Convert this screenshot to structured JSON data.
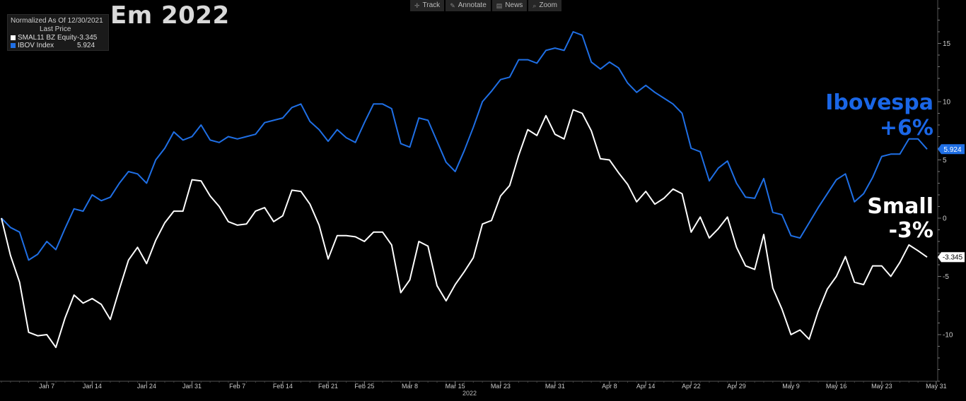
{
  "title": "Em 2022",
  "legend": {
    "header": "Normalized As Of 12/30/2021",
    "subheader": "Last Price",
    "items": [
      {
        "name": "SMAL11 BZ Equity",
        "value": "-3.345",
        "color": "#ffffff"
      },
      {
        "name": "IBOV Index",
        "value": "5.924",
        "color": "#1f6fe5"
      }
    ]
  },
  "toolbar": {
    "items": [
      {
        "label": "Track",
        "icon": "crosshair-icon"
      },
      {
        "label": "Annotate",
        "icon": "pencil-icon"
      },
      {
        "label": "News",
        "icon": "news-icon"
      },
      {
        "label": "Zoom",
        "icon": "magnifier-icon"
      }
    ]
  },
  "annotations": {
    "ibov_line1": "Ibovespa",
    "ibov_line2": "+6%",
    "small_line1": "Small",
    "small_line2": "-3%"
  },
  "chart_data": {
    "type": "line",
    "xlabel": "2022",
    "ylim": [
      -14,
      18
    ],
    "yticks": [
      -10,
      -5,
      0,
      5,
      10,
      15
    ],
    "x_tick_labels": [
      "Jan 7",
      "Jan 14",
      "Jan 24",
      "Jan 31",
      "Feb 7",
      "Feb 14",
      "Feb 21",
      "Feb 25",
      "Mar 8",
      "Mar 15",
      "Mar 23",
      "Mar 31",
      "Apr 8",
      "Apr 14",
      "Apr 22",
      "Apr 29",
      "May 9",
      "May 16",
      "May 23",
      "May 31"
    ],
    "x_tick_index": [
      5,
      10,
      16,
      21,
      26,
      31,
      36,
      40,
      45,
      50,
      55,
      61,
      67,
      71,
      76,
      81,
      87,
      92,
      97,
      103
    ],
    "grid": false,
    "series": [
      {
        "name": "IBOV Index",
        "color": "#1f6fe5",
        "last_label": "5.924",
        "values": [
          0,
          -0.8,
          -1.2,
          -3.6,
          -3.1,
          -2.0,
          -2.7,
          -0.9,
          0.8,
          0.6,
          2.0,
          1.5,
          1.8,
          3.0,
          4.0,
          3.8,
          3.0,
          5.0,
          6.0,
          7.4,
          6.7,
          7.0,
          8.0,
          6.7,
          6.5,
          7.0,
          6.8,
          7.0,
          7.2,
          8.2,
          8.4,
          8.6,
          9.5,
          9.8,
          8.3,
          7.6,
          6.6,
          7.6,
          6.9,
          6.5,
          8.2,
          9.8,
          9.8,
          9.4,
          6.4,
          6.1,
          8.6,
          8.4,
          6.6,
          4.8,
          4.0,
          5.8,
          7.8,
          10.0,
          10.9,
          11.9,
          12.1,
          13.6,
          13.6,
          13.3,
          14.4,
          14.6,
          14.4,
          16.0,
          15.7,
          13.4,
          12.8,
          13.4,
          12.9,
          11.6,
          10.8,
          11.4,
          10.8,
          10.3,
          9.8,
          9.0,
          6.0,
          5.7,
          3.2,
          4.3,
          4.9,
          3.0,
          1.8,
          1.7,
          3.4,
          0.5,
          0.3,
          -1.5,
          -1.7,
          -0.4,
          0.9,
          2.1,
          3.3,
          3.8,
          1.4,
          2.1,
          3.5,
          5.3,
          5.5,
          5.5,
          6.8,
          6.8,
          5.924
        ]
      },
      {
        "name": "SMAL11 BZ Equity",
        "color": "#ffffff",
        "last_label": "-3.345",
        "values": [
          0,
          -3.2,
          -5.5,
          -9.8,
          -10.1,
          -10.0,
          -11.1,
          -8.6,
          -6.6,
          -7.3,
          -6.9,
          -7.4,
          -8.7,
          -6.1,
          -3.6,
          -2.5,
          -3.9,
          -1.9,
          -0.4,
          0.6,
          0.6,
          3.3,
          3.2,
          1.9,
          1.0,
          -0.3,
          -0.6,
          -0.5,
          0.6,
          0.9,
          -0.3,
          0.2,
          2.4,
          2.3,
          1.2,
          -0.6,
          -3.5,
          -1.5,
          -1.5,
          -1.6,
          -2.0,
          -1.2,
          -1.2,
          -2.3,
          -6.4,
          -5.3,
          -2.0,
          -2.4,
          -5.8,
          -7.1,
          -5.7,
          -4.6,
          -3.4,
          -0.5,
          -0.2,
          1.9,
          2.8,
          5.4,
          7.6,
          7.1,
          8.8,
          7.2,
          6.8,
          9.3,
          9.0,
          7.5,
          5.1,
          5.0,
          3.9,
          2.9,
          1.4,
          2.3,
          1.2,
          1.7,
          2.5,
          2.1,
          -1.2,
          0.1,
          -1.7,
          -0.9,
          0.1,
          -2.5,
          -4.1,
          -4.4,
          -1.4,
          -6.0,
          -7.8,
          -10.0,
          -9.6,
          -10.4,
          -8.0,
          -6.1,
          -5.0,
          -3.3,
          -5.5,
          -5.7,
          -4.1,
          -4.1,
          -5.0,
          -3.8,
          -2.3,
          -2.8,
          -3.345
        ]
      }
    ]
  }
}
